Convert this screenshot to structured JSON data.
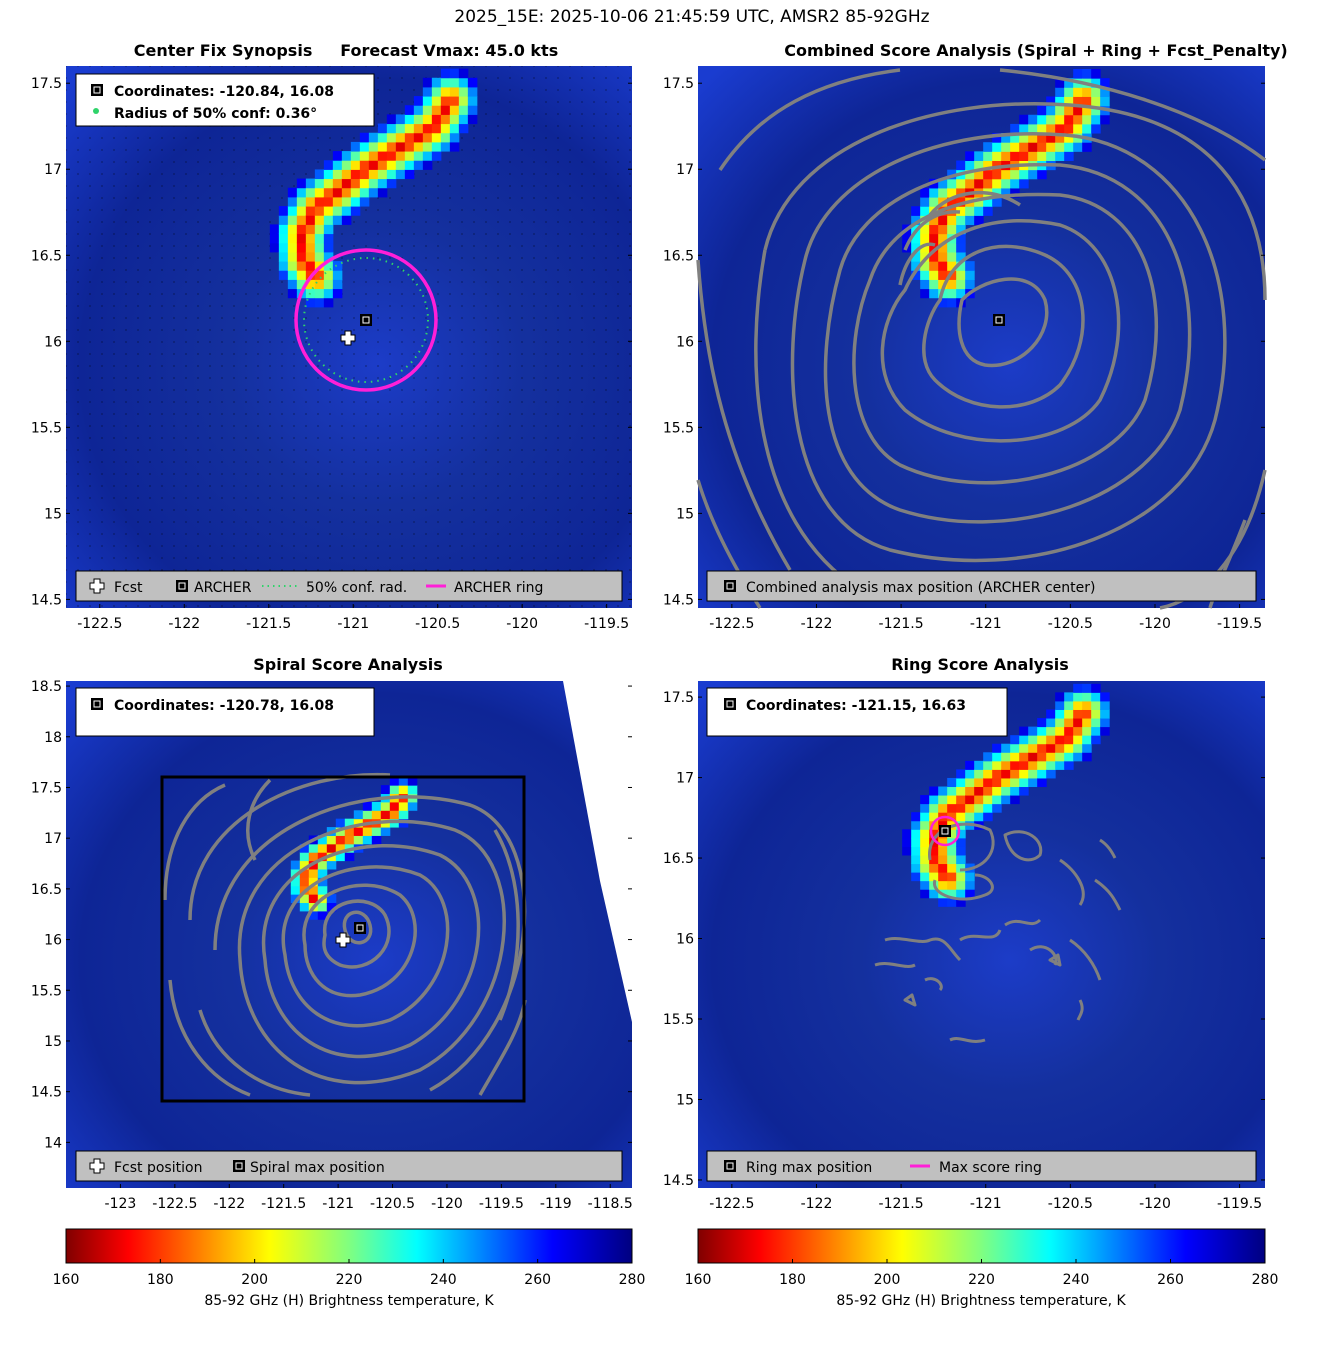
{
  "figure": {
    "suptitle": "2025_15E: 2025-10-06 21:45:59 UTC, AMSR2 85-92GHz"
  },
  "colors": {
    "background_high_tb": "#0a1f9a",
    "storm_core": "#1a3fe0",
    "cold_cloud_dark_red": "#7f0000",
    "archer_ring": "#ff1fd8",
    "conf_circle": "#2fd36a",
    "contour": "#808080",
    "legend_box": "#c0c0c0"
  },
  "panels": [
    {
      "title": "Center Fix Synopsis     Forecast Vmax: 45.0 kts",
      "info_lines": [
        "Coordinates: -120.84, 16.08",
        "Radius of 50% conf: 0.36°"
      ],
      "info_icons": [
        "black-square-icon",
        "green-dot-icon"
      ],
      "legend": [
        {
          "icon": "white-cross-icon",
          "label": "Fcst"
        },
        {
          "icon": "black-square-icon",
          "label": "ARCHER"
        },
        {
          "icon": "green-dotted-line-icon",
          "label": "50% conf. rad."
        },
        {
          "icon": "magenta-line-icon",
          "label": "ARCHER ring"
        }
      ],
      "xticks": [
        "-122.5",
        "-122",
        "-121.5",
        "-121",
        "-120.5",
        "-120",
        "-119.5"
      ],
      "yticks": [
        "17.5",
        "17",
        "16.5",
        "16",
        "15.5",
        "15",
        "14.5"
      ]
    },
    {
      "title": "Combined Score Analysis (Spiral + Ring + Fcst_Penalty)",
      "legend": [
        {
          "icon": "black-square-icon",
          "label": "Combined analysis max position (ARCHER center)"
        }
      ],
      "xticks": [
        "-122.5",
        "-122",
        "-121.5",
        "-121",
        "-120.5",
        "-120",
        "-119.5"
      ],
      "yticks": [
        "17.5",
        "17",
        "16.5",
        "16",
        "15.5",
        "15",
        "14.5"
      ]
    },
    {
      "title": "Spiral Score Analysis",
      "info_lines": [
        "Coordinates: -120.78, 16.08"
      ],
      "info_icons": [
        "black-square-icon"
      ],
      "legend": [
        {
          "icon": "white-cross-icon",
          "label": "Fcst position"
        },
        {
          "icon": "black-square-icon",
          "label": "Spiral max position"
        }
      ],
      "xticks": [
        "-123",
        "-122.5",
        "-122",
        "-121.5",
        "-121",
        "-120.5",
        "-120",
        "-119.5",
        "-119",
        "-118.5"
      ],
      "yticks": [
        "18.5",
        "18",
        "17.5",
        "17",
        "16.5",
        "16",
        "15.5",
        "15",
        "14.5",
        "14"
      ]
    },
    {
      "title": "Ring Score Analysis",
      "info_lines": [
        "Coordinates: -121.15, 16.63"
      ],
      "info_icons": [
        "black-square-icon"
      ],
      "legend": [
        {
          "icon": "black-square-icon",
          "label": "Ring max position"
        },
        {
          "icon": "magenta-line-icon",
          "label": "Max score ring"
        }
      ],
      "xticks": [
        "-122.5",
        "-122",
        "-121.5",
        "-121",
        "-120.5",
        "-120",
        "-119.5"
      ],
      "yticks": [
        "17.5",
        "17",
        "16.5",
        "16",
        "15.5",
        "15",
        "14.5"
      ]
    }
  ],
  "colorbar": {
    "ticks": [
      "160",
      "180",
      "200",
      "220",
      "240",
      "260",
      "280"
    ],
    "label": "85-92 GHz (H) Brightness temperature, K"
  },
  "chart_data": {
    "type": "heatmap",
    "title": "2025_15E: 2025-10-06 21:45:59 UTC, AMSR2 85-92GHz",
    "variable": "85-92 GHz (H) Brightness temperature, K",
    "colormap": "jet_reversed",
    "clim": [
      160,
      280
    ],
    "panels": [
      {
        "name": "Center Fix Synopsis",
        "xlim": [
          -122.7,
          -119.35
        ],
        "ylim": [
          14.45,
          17.6
        ],
        "forecast_vmax_kts": 45.0,
        "fcst_position": [
          -120.95,
          15.98
        ],
        "archer_center": [
          -120.84,
          16.08
        ],
        "conf_radius_deg": 0.36
      },
      {
        "name": "Combined Score Analysis",
        "xlim": [
          -122.7,
          -119.35
        ],
        "ylim": [
          14.45,
          17.6
        ],
        "max_position": [
          -120.84,
          16.08
        ]
      },
      {
        "name": "Spiral Score Analysis",
        "xlim": [
          -123.5,
          -118.3
        ],
        "ylim": [
          13.55,
          18.55
        ],
        "fcst_position": [
          -120.95,
          16.0
        ],
        "max_position": [
          -120.78,
          16.08
        ],
        "analysis_box": {
          "x": [
            -122.9,
            -119.55
          ],
          "y": [
            14.38,
            17.58
          ]
        }
      },
      {
        "name": "Ring Score Analysis",
        "xlim": [
          -122.7,
          -119.35
        ],
        "ylim": [
          14.45,
          17.6
        ],
        "max_position": [
          -121.15,
          16.63
        ],
        "max_score_ring_radius_deg": 0.08
      }
    ],
    "cold_band_points": [
      [
        -120.45,
        17.38
      ],
      [
        -120.55,
        17.22
      ],
      [
        -120.75,
        17.1
      ],
      [
        -120.95,
        16.98
      ],
      [
        -121.1,
        16.86
      ],
      [
        -121.25,
        16.75
      ],
      [
        -121.33,
        16.6
      ],
      [
        -121.32,
        16.45
      ],
      [
        -121.25,
        16.35
      ]
    ]
  }
}
